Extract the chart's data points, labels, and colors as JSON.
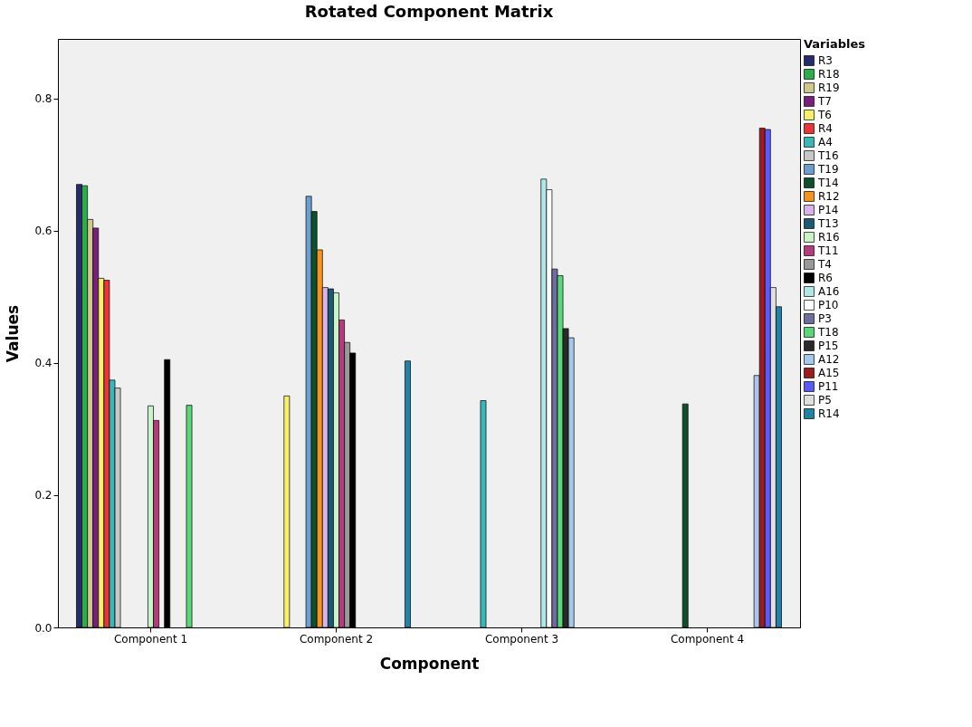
{
  "chart_data": {
    "type": "bar",
    "title": "Rotated Component Matrix",
    "xlabel": "Component",
    "ylabel": "Values",
    "legend_title": "Variables",
    "legend": "right",
    "grid": false,
    "categories": [
      "Component 1",
      "Component 2",
      "Component 3",
      "Component 4"
    ],
    "ylim": [
      0,
      0.89
    ],
    "yticks": [
      {
        "value": 0,
        "label": "0.0"
      },
      0.2,
      0.4,
      0.6,
      0.8
    ],
    "series": [
      {
        "name": "R3",
        "color": "#262a6e",
        "values": [
          0.67,
          null,
          null,
          null
        ]
      },
      {
        "name": "R18",
        "color": "#2ab04a",
        "values": [
          0.668,
          null,
          null,
          null
        ]
      },
      {
        "name": "R19",
        "color": "#cfc98d",
        "values": [
          0.617,
          null,
          null,
          null
        ]
      },
      {
        "name": "T7",
        "color": "#7a1f7e",
        "values": [
          0.604,
          null,
          null,
          null
        ]
      },
      {
        "name": "T6",
        "color": "#f7f06a",
        "values": [
          0.528,
          0.35,
          null,
          null
        ]
      },
      {
        "name": "R4",
        "color": "#ee3237",
        "values": [
          0.525,
          null,
          null,
          null
        ]
      },
      {
        "name": "A4",
        "color": "#3ab8b8",
        "values": [
          0.374,
          null,
          0.343,
          null
        ]
      },
      {
        "name": "T16",
        "color": "#c8c8c8",
        "values": [
          0.362,
          null,
          null,
          null
        ]
      },
      {
        "name": "T19",
        "color": "#6b9fd0",
        "values": [
          null,
          0.652,
          null,
          null
        ]
      },
      {
        "name": "T14",
        "color": "#0f4f2a",
        "values": [
          null,
          0.629,
          null,
          0.338
        ]
      },
      {
        "name": "R12",
        "color": "#f7941e",
        "values": [
          null,
          0.571,
          null,
          null
        ]
      },
      {
        "name": "P14",
        "color": "#d9b3ea",
        "values": [
          null,
          0.514,
          null,
          null
        ]
      },
      {
        "name": "T13",
        "color": "#1a5a72",
        "values": [
          null,
          0.512,
          null,
          null
        ]
      },
      {
        "name": "R16",
        "color": "#c8f5c8",
        "values": [
          0.335,
          0.506,
          null,
          null
        ]
      },
      {
        "name": "T11",
        "color": "#b83a7e",
        "values": [
          0.313,
          0.465,
          null,
          null
        ]
      },
      {
        "name": "T4",
        "color": "#999999",
        "values": [
          null,
          0.431,
          null,
          null
        ]
      },
      {
        "name": "R6",
        "color": "#000000",
        "values": [
          0.405,
          0.415,
          null,
          null
        ]
      },
      {
        "name": "A16",
        "color": "#b0e8e8",
        "values": [
          null,
          null,
          0.678,
          null
        ]
      },
      {
        "name": "P10",
        "color": "#ffffff",
        "values": [
          null,
          null,
          0.662,
          null
        ]
      },
      {
        "name": "P3",
        "color": "#6e6e9e",
        "values": [
          null,
          null,
          0.542,
          null
        ]
      },
      {
        "name": "T18",
        "color": "#5cd67a",
        "values": [
          0.336,
          null,
          0.532,
          null
        ]
      },
      {
        "name": "P15",
        "color": "#2a2a2a",
        "values": [
          null,
          null,
          0.452,
          null
        ]
      },
      {
        "name": "A12",
        "color": "#a6c8ea",
        "values": [
          null,
          null,
          0.438,
          0.381
        ]
      },
      {
        "name": "A15",
        "color": "#a01a1e",
        "values": [
          null,
          null,
          null,
          0.755
        ]
      },
      {
        "name": "P11",
        "color": "#5a5aff",
        "values": [
          null,
          null,
          null,
          0.753
        ]
      },
      {
        "name": "P5",
        "color": "#e0e0e0",
        "values": [
          null,
          null,
          null,
          0.514
        ]
      },
      {
        "name": "R14",
        "color": "#1f82a6",
        "values": [
          null,
          0.403,
          null,
          0.485
        ]
      }
    ]
  }
}
